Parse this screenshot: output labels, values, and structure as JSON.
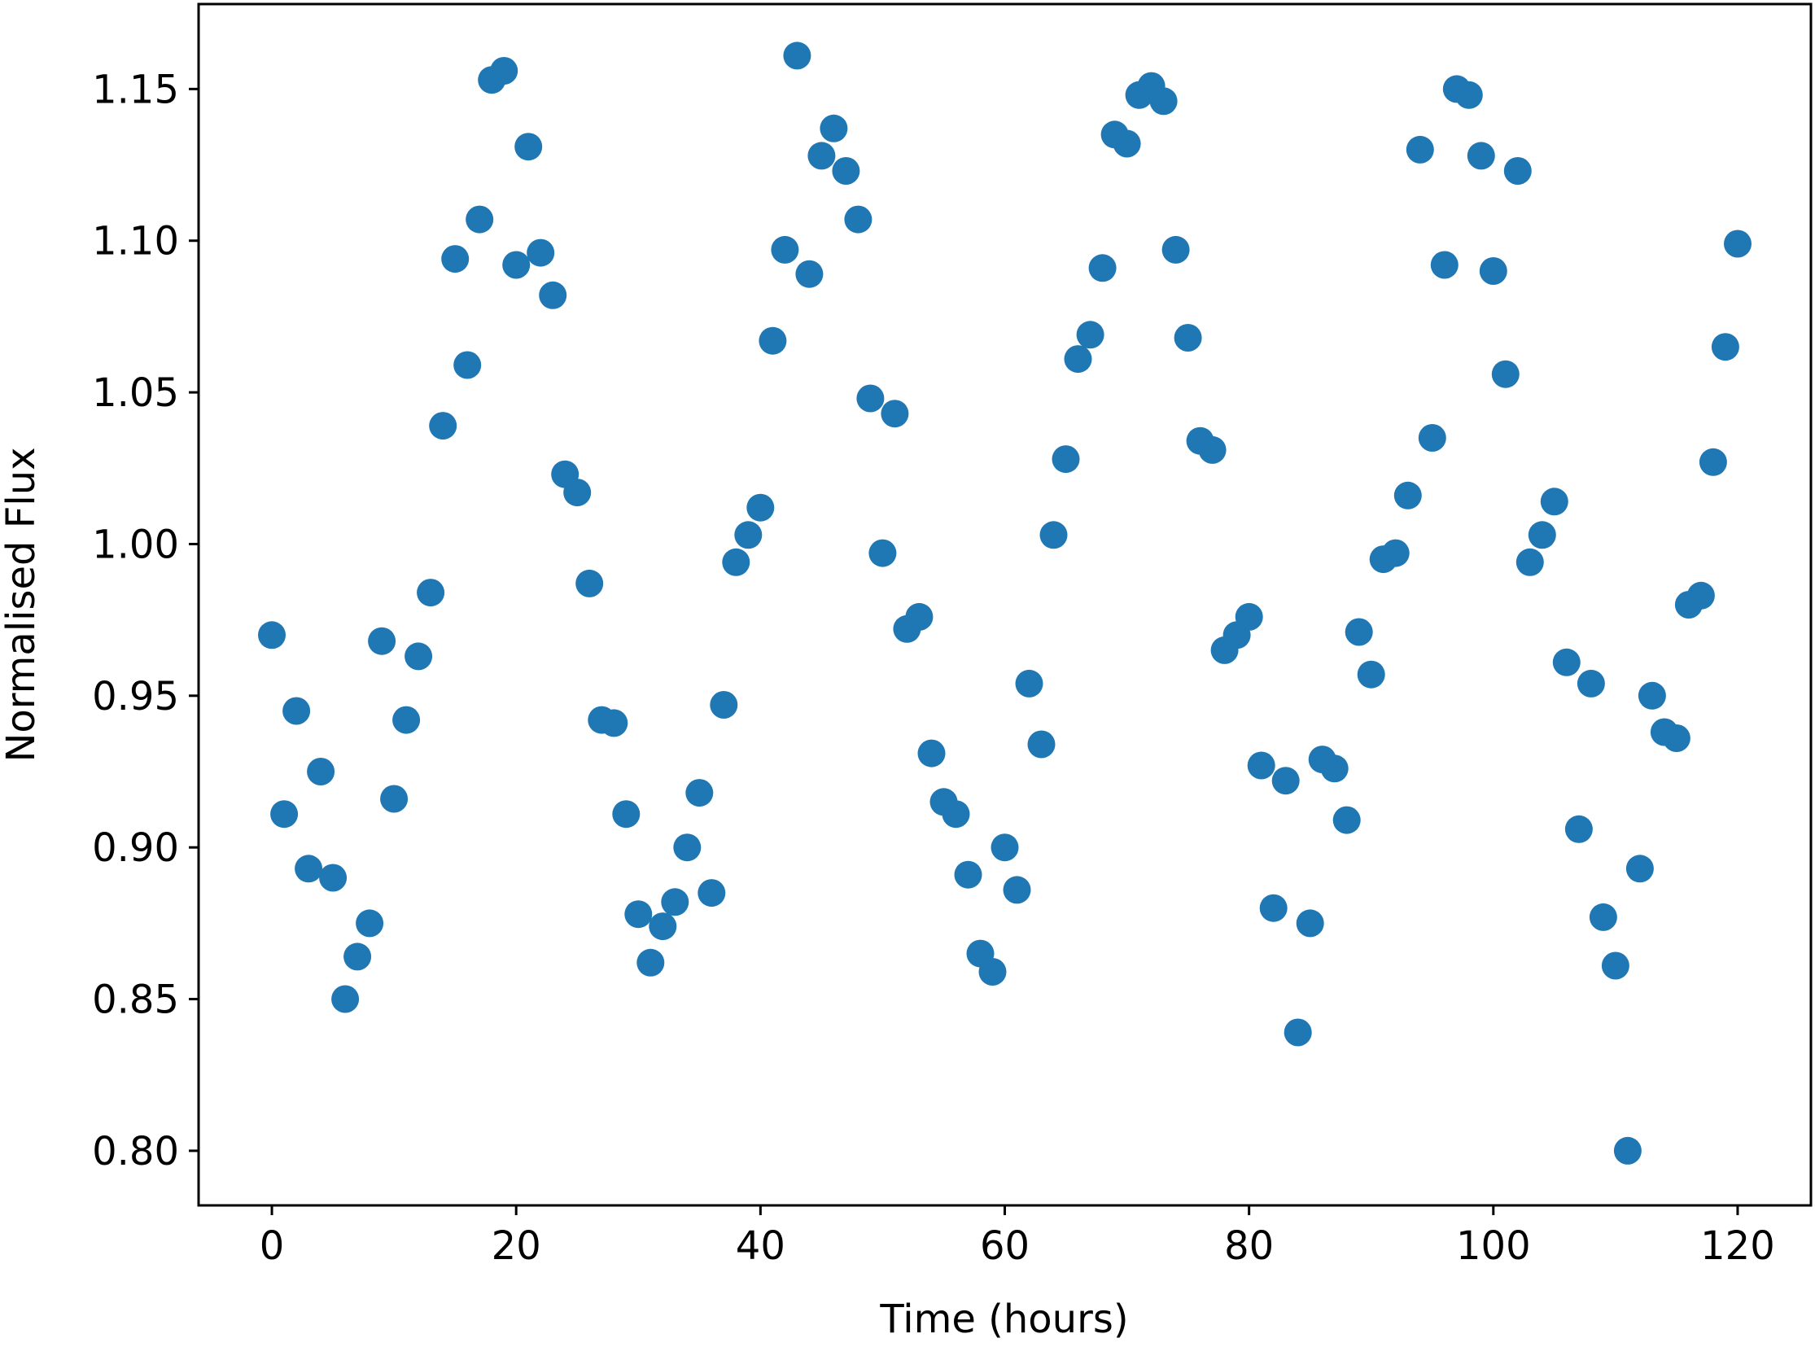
{
  "colors": {
    "marker": "#1f77b4",
    "axes": "#000000",
    "background": "#ffffff"
  },
  "chart_data": {
    "type": "scatter",
    "title": "",
    "xlabel": "Time (hours)",
    "ylabel": "Normalised Flux",
    "xlim": [
      -6,
      126
    ],
    "ylim": [
      0.782,
      1.178
    ],
    "grid": false,
    "x_ticks": [
      0,
      20,
      40,
      60,
      80,
      100,
      120
    ],
    "x_tick_labels": [
      "0",
      "20",
      "40",
      "60",
      "80",
      "100",
      "120"
    ],
    "y_ticks": [
      0.8,
      0.85,
      0.9,
      0.95,
      1.0,
      1.05,
      1.1,
      1.15
    ],
    "y_tick_labels": [
      "0.80",
      "0.85",
      "0.90",
      "0.95",
      "1.00",
      "1.05",
      "1.10",
      "1.15"
    ],
    "series": [
      {
        "x": [
          0,
          1,
          2,
          3,
          4,
          5,
          6,
          7,
          8,
          9,
          10,
          11,
          12,
          13,
          14,
          15,
          16,
          17,
          18,
          19,
          20,
          21,
          22,
          23,
          24,
          25,
          26,
          27,
          28,
          29,
          30,
          31,
          32,
          33,
          34,
          35,
          36,
          37,
          38,
          39,
          40,
          41,
          42,
          43,
          44,
          45,
          46,
          47,
          48,
          49,
          50,
          51,
          52,
          53,
          54,
          55,
          56,
          57,
          58,
          59,
          60,
          61,
          62,
          63,
          64,
          65,
          66,
          67,
          68,
          69,
          70,
          71,
          72,
          73,
          74,
          75,
          76,
          77,
          78,
          79,
          80,
          81,
          82,
          83,
          84,
          85,
          86,
          87,
          88,
          89,
          90,
          91,
          92,
          93,
          94,
          95,
          96,
          97,
          98,
          99,
          100,
          101,
          102,
          103,
          104,
          105,
          106,
          107,
          108,
          109,
          110,
          111,
          112,
          113,
          114,
          115,
          116,
          117,
          118,
          119,
          120
        ],
        "y": [
          0.97,
          0.911,
          0.945,
          0.893,
          0.925,
          0.89,
          0.85,
          0.864,
          0.875,
          0.968,
          0.916,
          0.942,
          0.963,
          0.984,
          1.039,
          1.094,
          1.059,
          1.107,
          1.153,
          1.156,
          1.092,
          1.131,
          1.096,
          1.082,
          1.023,
          1.017,
          0.987,
          0.942,
          0.941,
          0.911,
          0.878,
          0.862,
          0.874,
          0.882,
          0.9,
          0.918,
          0.885,
          0.947,
          0.994,
          1.003,
          1.012,
          1.067,
          1.097,
          1.161,
          1.089,
          1.128,
          1.137,
          1.123,
          1.107,
          1.048,
          0.997,
          1.043,
          0.972,
          0.976,
          0.931,
          0.915,
          0.911,
          0.891,
          0.865,
          0.859,
          0.9,
          0.886,
          0.954,
          0.934,
          1.003,
          1.028,
          1.061,
          1.069,
          1.091,
          1.135,
          1.132,
          1.148,
          1.151,
          1.146,
          1.097,
          1.068,
          1.034,
          1.031,
          0.965,
          0.97,
          0.976,
          0.927,
          0.88,
          0.922,
          0.839,
          0.875,
          0.929,
          0.926,
          0.909,
          0.971,
          0.957,
          0.995,
          0.997,
          1.016,
          1.13,
          1.035,
          1.092,
          1.15,
          1.148,
          1.128,
          1.09,
          1.056,
          1.123,
          0.994,
          1.003,
          1.014,
          0.961,
          0.906,
          0.954,
          0.877,
          0.861,
          0.8,
          0.893,
          0.95,
          0.938,
          0.936,
          0.98,
          0.983,
          1.027,
          1.065,
          1.099
        ]
      }
    ]
  }
}
